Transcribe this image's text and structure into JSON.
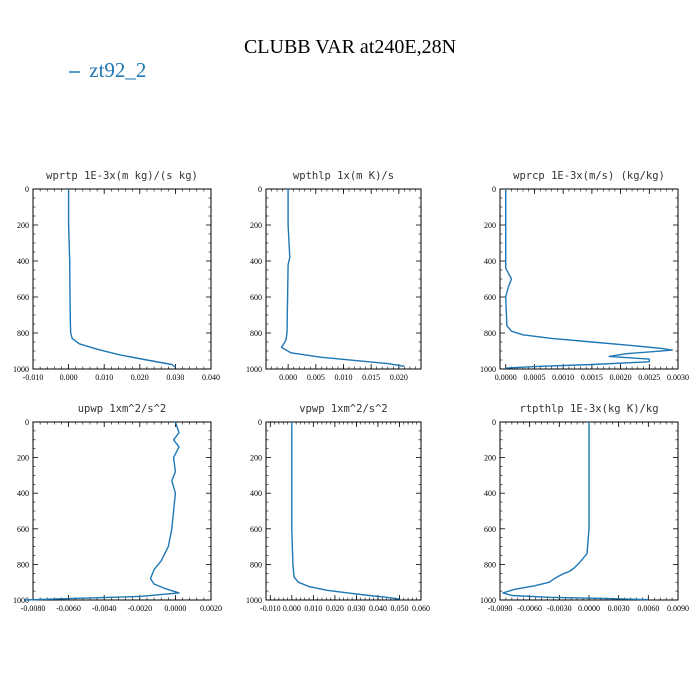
{
  "title": "CLUBB VAR at240E,28N",
  "legend": [
    {
      "label": "zt92_2",
      "color": "#1f77b4"
    }
  ],
  "chart_data": [
    {
      "type": "line",
      "title": "wprtp  1E-3x(m kg)/(s kg)",
      "xlim": [
        -0.01,
        0.04
      ],
      "ylim": [
        1000,
        0
      ],
      "xticks": [
        "-0.010",
        "0.000",
        "0.010",
        "0.020",
        "0.030",
        "0.040"
      ],
      "yticks": [
        "0",
        "200",
        "400",
        "600",
        "800",
        "1000"
      ],
      "series": [
        {
          "color": "#1f77b4",
          "x": [
            0.0,
            0.0,
            0.0003,
            0.0004,
            0.0005,
            0.0006,
            0.001,
            0.003,
            0.008,
            0.014,
            0.022,
            0.029,
            0.03
          ],
          "y": [
            0,
            200,
            400,
            600,
            750,
            800,
            830,
            860,
            890,
            920,
            950,
            975,
            990
          ]
        }
      ]
    },
    {
      "type": "line",
      "title": "wpthlp  1x(m K)/s",
      "xlim": [
        -0.004,
        0.024
      ],
      "ylim": [
        1000,
        0
      ],
      "xticks": [
        "0.000",
        "0.005",
        "0.010",
        "0.015",
        "0.020"
      ],
      "yticks": [
        "0",
        "200",
        "400",
        "600",
        "800",
        "1000"
      ],
      "series": [
        {
          "color": "#1f77b4",
          "x": [
            0.0,
            0.0,
            0.0003,
            0.0,
            -0.0001,
            -0.0002,
            -0.0004,
            -0.0008,
            -0.0012,
            0.0005,
            0.006,
            0.013,
            0.018,
            0.021
          ],
          "y": [
            0,
            200,
            380,
            420,
            600,
            800,
            840,
            860,
            880,
            910,
            935,
            955,
            970,
            985
          ]
        }
      ]
    },
    {
      "type": "line",
      "title": "wprcp  1E-3x(m/s) (kg/kg)",
      "xlim": [
        -0.0001,
        0.003
      ],
      "ylim": [
        1000,
        0
      ],
      "xticks": [
        "0.0000",
        "0.0005",
        "0.0010",
        "0.0015",
        "0.0020",
        "0.0025",
        "0.0030"
      ],
      "yticks": [
        "0",
        "200",
        "400",
        "600",
        "800",
        "1000"
      ],
      "series": [
        {
          "color": "#1f77b4",
          "x": [
            0.0,
            0.0,
            0.0,
            5e-05,
            0.0001,
            5e-05,
            0.0,
            2e-05,
            0.0001,
            0.0003,
            0.0008,
            0.0015,
            0.0022,
            0.0027,
            0.0029,
            0.0025,
            0.0021,
            0.0018,
            0.0025,
            0.0025,
            0.0015,
            0.0006,
            0.0
          ],
          "y": [
            0,
            200,
            440,
            470,
            500,
            540,
            600,
            760,
            790,
            810,
            830,
            850,
            870,
            885,
            895,
            905,
            915,
            930,
            945,
            960,
            975,
            985,
            995
          ]
        }
      ]
    },
    {
      "type": "line",
      "title": "upwp  1xm^2/s^2",
      "xlim": [
        -0.008,
        0.002
      ],
      "ylim": [
        1000,
        0
      ],
      "xticks": [
        "-0.0080",
        "-0.0060",
        "-0.0040",
        "-0.0020",
        "0.0000",
        "0.0020"
      ],
      "yticks": [
        "0",
        "200",
        "400",
        "600",
        "800",
        "1000"
      ],
      "series": [
        {
          "color": "#1f77b4",
          "x": [
            0.0,
            0.0002,
            -0.0001,
            0.0002,
            -0.0001,
            0.0,
            -0.0002,
            0.0,
            -0.0001,
            -0.0002,
            -0.0004,
            -0.0008,
            -0.0012,
            -0.0014,
            -0.0012,
            -0.0006,
            0.0002,
            -0.002,
            -0.006,
            -0.0085
          ],
          "y": [
            0,
            60,
            100,
            140,
            200,
            280,
            330,
            400,
            500,
            600,
            700,
            780,
            830,
            880,
            910,
            935,
            960,
            980,
            992,
            1000
          ]
        }
      ]
    },
    {
      "type": "line",
      "title": "vpwp  1xm^2/s^2",
      "xlim": [
        -0.012,
        0.06
      ],
      "ylim": [
        1000,
        0
      ],
      "xticks": [
        "-0.010",
        "0.000",
        "0.010",
        "0.020",
        "0.030",
        "0.040",
        "0.050",
        "0.060"
      ],
      "yticks": [
        "0",
        "200",
        "400",
        "600",
        "800",
        "1000"
      ],
      "series": [
        {
          "color": "#1f77b4",
          "x": [
            0.0,
            0.0,
            0.0,
            0.0005,
            0.001,
            0.003,
            0.008,
            0.016,
            0.026,
            0.036,
            0.044,
            0.05
          ],
          "y": [
            0,
            300,
            600,
            800,
            870,
            900,
            925,
            945,
            960,
            975,
            985,
            995
          ]
        }
      ]
    },
    {
      "type": "line",
      "title": "rtpthlp  1E-3x(kg K)/kg",
      "xlim": [
        -0.009,
        0.009
      ],
      "ylim": [
        1000,
        0
      ],
      "xticks": [
        "-0.0090",
        "-0.0060",
        "-0.0030",
        "0.0000",
        "0.0030",
        "0.0060",
        "0.0090"
      ],
      "yticks": [
        "0",
        "200",
        "400",
        "600",
        "800",
        "1000"
      ],
      "series": [
        {
          "color": "#1f77b4",
          "x": [
            0.0,
            0.0,
            0.0,
            -0.0002,
            -0.0008,
            -0.0015,
            -0.002,
            -0.0025,
            -0.0032,
            -0.0035,
            -0.004,
            -0.0055,
            -0.0075,
            -0.0087,
            -0.0078,
            -0.004,
            0.002,
            0.006
          ],
          "y": [
            0,
            300,
            600,
            740,
            780,
            820,
            840,
            850,
            870,
            880,
            900,
            920,
            940,
            960,
            975,
            985,
            992,
            998
          ]
        }
      ]
    }
  ]
}
